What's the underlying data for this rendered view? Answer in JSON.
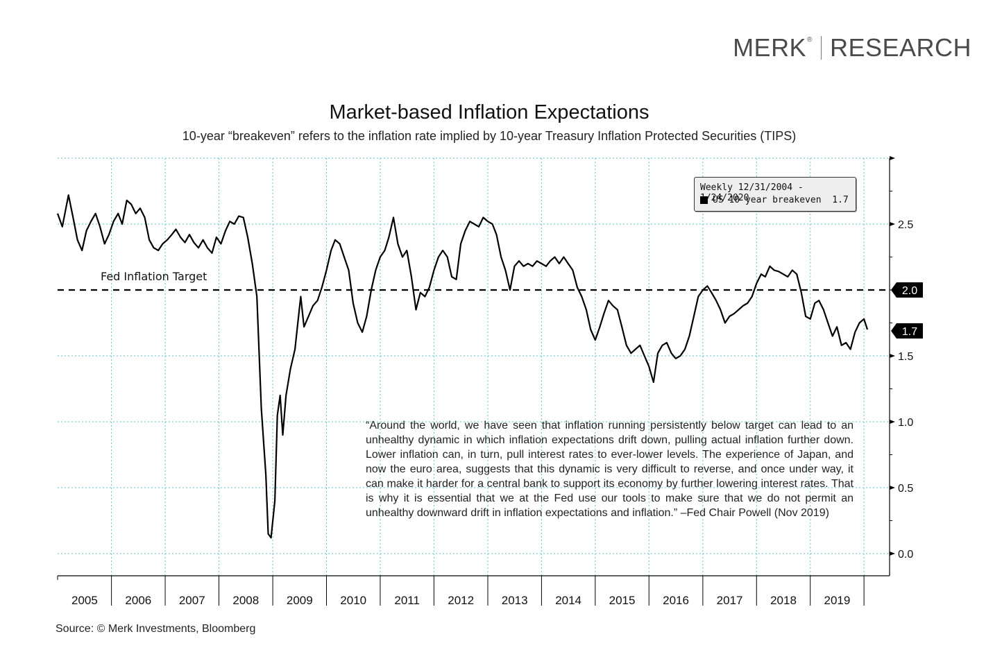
{
  "brand": {
    "name": "MERK",
    "registered": "®",
    "division": "RESEARCH"
  },
  "source": "Source: © Merk Investments, Bloomberg",
  "chart_data": {
    "type": "line",
    "title": "Market-based Inflation Expectations",
    "subtitle": "10-year “breakeven” refers to the inflation rate implied by 10-year Treasury Inflation Protected Securities (TIPS)",
    "legend": {
      "header": "Weekly 12/31/2004 - 1/24/2020",
      "entry": "US 10 year breakeven",
      "entry_value": "1.7",
      "placement": "top-right"
    },
    "x_tick_labels": [
      "2005",
      "2006",
      "2007",
      "2008",
      "2009",
      "2010",
      "2011",
      "2012",
      "2013",
      "2014",
      "2015",
      "2016",
      "2017",
      "2018",
      "2019"
    ],
    "xlim": [
      "2004-12-31",
      "2020-01-24"
    ],
    "y_tick_labels": [
      "0.0",
      "0.5",
      "1.0",
      "1.5",
      "2.5"
    ],
    "y_ticks": [
      0.0,
      0.5,
      1.0,
      1.5,
      2.5
    ],
    "ylim": [
      -0.15,
      2.95
    ],
    "y_axis_side": "right",
    "grid": true,
    "reference_line": {
      "value": 2.0,
      "label": "Fed Inflation Target",
      "axis_label": "2.0",
      "style": "dashed"
    },
    "last_value_label": "1.7",
    "annotation": "“Around the world, we have seen that inflation running persistently below target can lead to an unhealthy dynamic in which inflation expectations drift down, pulling actual inflation further down. Lower inflation can, in turn, pull interest rates to ever-lower levels. The experience of Japan, and now the euro area, suggests that this dynamic is very difficult to reverse, and once under way, it can make it harder for a central bank to support its economy by further lowering interest rates. That is why it is essential that we at the Fed use our tools to make sure that we do not permit an unhealthy downward drift in inflation expectations and inflation.” –Fed Chair Powell (Nov 2019)",
    "series": [
      {
        "color": "#000000",
        "points": [
          [
            "2004-12-31",
            2.58
          ],
          [
            "2005-02-01",
            2.48
          ],
          [
            "2005-03-15",
            2.72
          ],
          [
            "2005-04-15",
            2.55
          ],
          [
            "2005-05-15",
            2.38
          ],
          [
            "2005-06-15",
            2.3
          ],
          [
            "2005-07-15",
            2.45
          ],
          [
            "2005-08-15",
            2.52
          ],
          [
            "2005-09-15",
            2.58
          ],
          [
            "2005-10-15",
            2.48
          ],
          [
            "2005-11-15",
            2.35
          ],
          [
            "2005-12-15",
            2.42
          ],
          [
            "2006-01-15",
            2.52
          ],
          [
            "2006-02-15",
            2.58
          ],
          [
            "2006-03-15",
            2.5
          ],
          [
            "2006-04-15",
            2.68
          ],
          [
            "2006-05-15",
            2.65
          ],
          [
            "2006-06-15",
            2.58
          ],
          [
            "2006-07-15",
            2.62
          ],
          [
            "2006-08-15",
            2.55
          ],
          [
            "2006-09-15",
            2.38
          ],
          [
            "2006-10-15",
            2.32
          ],
          [
            "2006-11-15",
            2.3
          ],
          [
            "2006-12-15",
            2.35
          ],
          [
            "2007-01-15",
            2.38
          ],
          [
            "2007-02-15",
            2.42
          ],
          [
            "2007-03-15",
            2.46
          ],
          [
            "2007-04-15",
            2.4
          ],
          [
            "2007-05-15",
            2.36
          ],
          [
            "2007-06-15",
            2.42
          ],
          [
            "2007-07-15",
            2.36
          ],
          [
            "2007-08-15",
            2.32
          ],
          [
            "2007-09-15",
            2.38
          ],
          [
            "2007-10-15",
            2.32
          ],
          [
            "2007-11-15",
            2.28
          ],
          [
            "2007-12-15",
            2.4
          ],
          [
            "2008-01-15",
            2.35
          ],
          [
            "2008-02-15",
            2.45
          ],
          [
            "2008-03-15",
            2.52
          ],
          [
            "2008-04-15",
            2.5
          ],
          [
            "2008-05-15",
            2.56
          ],
          [
            "2008-06-15",
            2.55
          ],
          [
            "2008-07-15",
            2.4
          ],
          [
            "2008-08-15",
            2.2
          ],
          [
            "2008-09-15",
            1.95
          ],
          [
            "2008-10-15",
            1.1
          ],
          [
            "2008-11-15",
            0.6
          ],
          [
            "2008-12-01",
            0.15
          ],
          [
            "2008-12-20",
            0.12
          ],
          [
            "2009-01-15",
            0.4
          ],
          [
            "2009-02-01",
            1.05
          ],
          [
            "2009-02-20",
            1.2
          ],
          [
            "2009-03-10",
            0.9
          ],
          [
            "2009-04-01",
            1.2
          ],
          [
            "2009-05-01",
            1.4
          ],
          [
            "2009-06-01",
            1.55
          ],
          [
            "2009-06-20",
            1.75
          ],
          [
            "2009-07-10",
            1.95
          ],
          [
            "2009-08-01",
            1.72
          ],
          [
            "2009-09-01",
            1.8
          ],
          [
            "2009-10-01",
            1.88
          ],
          [
            "2009-11-01",
            1.92
          ],
          [
            "2009-12-01",
            2.02
          ],
          [
            "2010-01-01",
            2.15
          ],
          [
            "2010-02-01",
            2.3
          ],
          [
            "2010-03-01",
            2.38
          ],
          [
            "2010-04-01",
            2.35
          ],
          [
            "2010-05-01",
            2.25
          ],
          [
            "2010-06-01",
            2.15
          ],
          [
            "2010-07-01",
            1.9
          ],
          [
            "2010-08-01",
            1.75
          ],
          [
            "2010-09-01",
            1.68
          ],
          [
            "2010-10-01",
            1.8
          ],
          [
            "2010-11-01",
            2.0
          ],
          [
            "2010-12-01",
            2.15
          ],
          [
            "2011-01-01",
            2.25
          ],
          [
            "2011-02-01",
            2.3
          ],
          [
            "2011-03-01",
            2.4
          ],
          [
            "2011-04-01",
            2.55
          ],
          [
            "2011-05-01",
            2.35
          ],
          [
            "2011-06-01",
            2.25
          ],
          [
            "2011-07-01",
            2.3
          ],
          [
            "2011-08-01",
            2.1
          ],
          [
            "2011-09-01",
            1.85
          ],
          [
            "2011-10-01",
            1.98
          ],
          [
            "2011-11-01",
            1.95
          ],
          [
            "2011-12-01",
            2.02
          ],
          [
            "2012-01-01",
            2.15
          ],
          [
            "2012-02-01",
            2.25
          ],
          [
            "2012-03-01",
            2.3
          ],
          [
            "2012-04-01",
            2.25
          ],
          [
            "2012-05-01",
            2.1
          ],
          [
            "2012-06-01",
            2.08
          ],
          [
            "2012-07-01",
            2.35
          ],
          [
            "2012-08-01",
            2.45
          ],
          [
            "2012-09-01",
            2.52
          ],
          [
            "2012-10-01",
            2.5
          ],
          [
            "2012-11-01",
            2.48
          ],
          [
            "2012-12-01",
            2.55
          ],
          [
            "2013-01-01",
            2.52
          ],
          [
            "2013-02-01",
            2.5
          ],
          [
            "2013-03-01",
            2.42
          ],
          [
            "2013-04-01",
            2.25
          ],
          [
            "2013-05-01",
            2.15
          ],
          [
            "2013-06-01",
            2.0
          ],
          [
            "2013-07-01",
            2.18
          ],
          [
            "2013-08-01",
            2.22
          ],
          [
            "2013-09-01",
            2.18
          ],
          [
            "2013-10-01",
            2.2
          ],
          [
            "2013-11-01",
            2.18
          ],
          [
            "2013-12-01",
            2.22
          ],
          [
            "2014-01-01",
            2.2
          ],
          [
            "2014-02-01",
            2.18
          ],
          [
            "2014-03-01",
            2.22
          ],
          [
            "2014-04-01",
            2.25
          ],
          [
            "2014-05-01",
            2.2
          ],
          [
            "2014-06-01",
            2.25
          ],
          [
            "2014-07-01",
            2.2
          ],
          [
            "2014-08-01",
            2.15
          ],
          [
            "2014-09-01",
            2.02
          ],
          [
            "2014-10-01",
            1.95
          ],
          [
            "2014-11-01",
            1.85
          ],
          [
            "2014-12-01",
            1.7
          ],
          [
            "2015-01-01",
            1.62
          ],
          [
            "2015-02-01",
            1.72
          ],
          [
            "2015-03-01",
            1.82
          ],
          [
            "2015-04-01",
            1.92
          ],
          [
            "2015-05-01",
            1.88
          ],
          [
            "2015-06-01",
            1.85
          ],
          [
            "2015-07-01",
            1.72
          ],
          [
            "2015-08-01",
            1.58
          ],
          [
            "2015-09-01",
            1.52
          ],
          [
            "2015-10-01",
            1.55
          ],
          [
            "2015-11-01",
            1.58
          ],
          [
            "2015-12-01",
            1.5
          ],
          [
            "2016-01-01",
            1.42
          ],
          [
            "2016-02-01",
            1.3
          ],
          [
            "2016-03-01",
            1.52
          ],
          [
            "2016-04-01",
            1.58
          ],
          [
            "2016-05-01",
            1.6
          ],
          [
            "2016-06-01",
            1.52
          ],
          [
            "2016-07-01",
            1.48
          ],
          [
            "2016-08-01",
            1.5
          ],
          [
            "2016-09-01",
            1.55
          ],
          [
            "2016-10-01",
            1.65
          ],
          [
            "2016-11-01",
            1.8
          ],
          [
            "2016-12-01",
            1.95
          ],
          [
            "2017-01-01",
            2.0
          ],
          [
            "2017-02-01",
            2.03
          ],
          [
            "2017-03-01",
            1.98
          ],
          [
            "2017-04-01",
            1.92
          ],
          [
            "2017-05-01",
            1.85
          ],
          [
            "2017-06-01",
            1.75
          ],
          [
            "2017-07-01",
            1.8
          ],
          [
            "2017-08-01",
            1.82
          ],
          [
            "2017-09-01",
            1.85
          ],
          [
            "2017-10-01",
            1.88
          ],
          [
            "2017-11-01",
            1.9
          ],
          [
            "2017-12-01",
            1.95
          ],
          [
            "2018-01-01",
            2.05
          ],
          [
            "2018-02-01",
            2.12
          ],
          [
            "2018-03-01",
            2.1
          ],
          [
            "2018-04-01",
            2.18
          ],
          [
            "2018-05-01",
            2.15
          ],
          [
            "2018-06-01",
            2.14
          ],
          [
            "2018-07-01",
            2.12
          ],
          [
            "2018-08-01",
            2.1
          ],
          [
            "2018-09-01",
            2.15
          ],
          [
            "2018-10-01",
            2.12
          ],
          [
            "2018-11-01",
            1.98
          ],
          [
            "2018-12-01",
            1.8
          ],
          [
            "2019-01-01",
            1.78
          ],
          [
            "2019-02-01",
            1.9
          ],
          [
            "2019-03-01",
            1.92
          ],
          [
            "2019-04-01",
            1.85
          ],
          [
            "2019-05-01",
            1.75
          ],
          [
            "2019-06-01",
            1.65
          ],
          [
            "2019-07-01",
            1.72
          ],
          [
            "2019-08-01",
            1.58
          ],
          [
            "2019-09-01",
            1.6
          ],
          [
            "2019-10-01",
            1.55
          ],
          [
            "2019-11-01",
            1.68
          ],
          [
            "2019-12-01",
            1.75
          ],
          [
            "2020-01-01",
            1.78
          ],
          [
            "2020-01-24",
            1.7
          ]
        ]
      }
    ]
  }
}
